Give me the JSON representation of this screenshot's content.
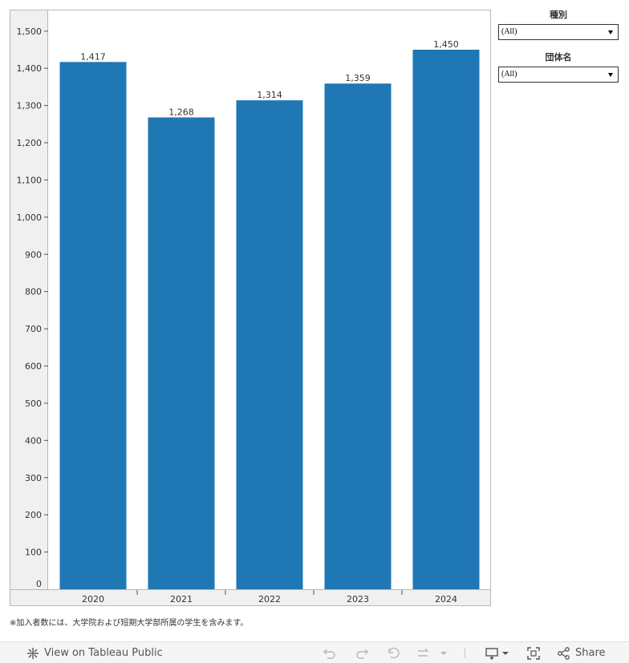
{
  "chart_data": {
    "type": "bar",
    "categories": [
      "2020",
      "2021",
      "2022",
      "2023",
      "2024"
    ],
    "values": [
      1417,
      1268,
      1314,
      1359,
      1450
    ],
    "value_labels": [
      "1,417",
      "1,268",
      "1,314",
      "1,359",
      "1,450"
    ],
    "y_ticks": [
      0,
      100,
      200,
      300,
      400,
      500,
      600,
      700,
      800,
      900,
      1000,
      1100,
      1200,
      1300,
      1400,
      1500
    ],
    "y_tick_labels": [
      "0",
      "100",
      "200",
      "300",
      "400",
      "500",
      "600",
      "700",
      "800",
      "900",
      "1,000",
      "1,100",
      "1,200",
      "1,300",
      "1,400",
      "1,500"
    ],
    "ylim": [
      0,
      1500
    ],
    "title": "",
    "xlabel": "",
    "ylabel": "",
    "grid": false,
    "bar_color": "#1f77b4"
  },
  "filters": [
    {
      "title": "種別",
      "value": "(All)"
    },
    {
      "title": "団体名",
      "value": "(All)"
    }
  ],
  "footnote": "※加入者数には、大学院および短期大学部所属の学生を含みます。",
  "toolbar": {
    "view_on_label": "View on Tableau Public",
    "share_label": "Share",
    "icons": [
      "tableau-logo-icon",
      "undo-icon",
      "redo-icon",
      "revert-icon",
      "refresh-icon",
      "pause-icon",
      "download-icon",
      "fullscreen-icon",
      "share-icon"
    ]
  }
}
